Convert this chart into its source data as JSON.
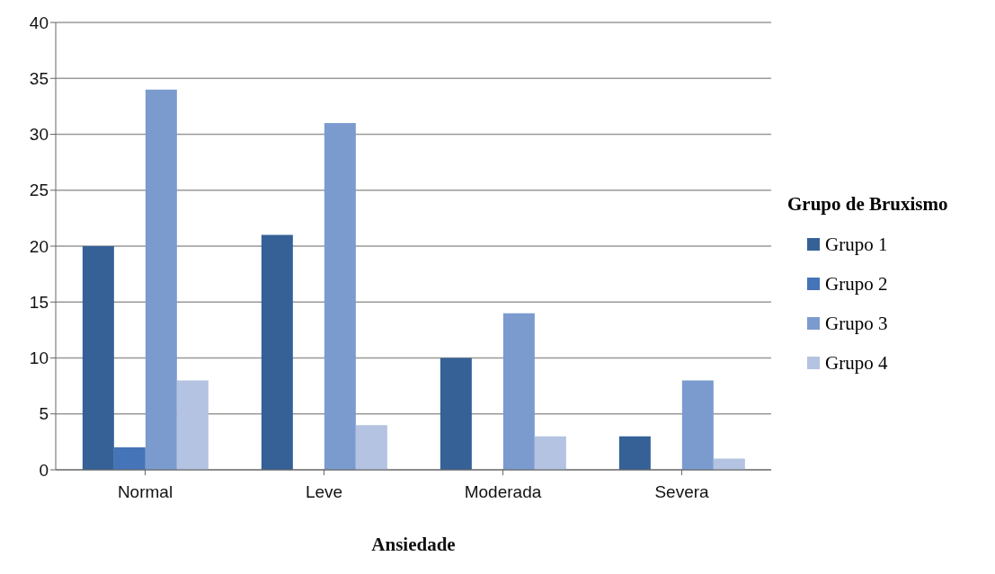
{
  "chart_data": {
    "type": "bar",
    "xlabel": "Ansiedade",
    "legend_title": "Grupo de Bruxismo",
    "categories": [
      "Normal",
      "Leve",
      "Moderada",
      "Severa"
    ],
    "series": [
      {
        "name": "Grupo 1",
        "color": "#356197",
        "values": [
          20,
          21,
          10,
          3
        ]
      },
      {
        "name": "Grupo 2",
        "color": "#4574b8",
        "values": [
          2,
          0,
          0,
          0
        ]
      },
      {
        "name": "Grupo 3",
        "color": "#7b9bcf",
        "values": [
          34,
          31,
          14,
          8
        ]
      },
      {
        "name": "Grupo 4",
        "color": "#b4c3e1",
        "values": [
          8,
          4,
          3,
          1
        ]
      }
    ],
    "ylim": [
      0,
      40
    ],
    "yticks": [
      0,
      5,
      10,
      15,
      20,
      25,
      30,
      35,
      40
    ],
    "grid": "y",
    "legend": "right"
  }
}
